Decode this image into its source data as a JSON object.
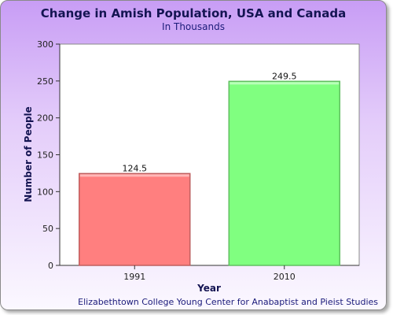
{
  "chart_data": {
    "type": "bar",
    "title": "Change in Amish Population, USA and Canada",
    "subtitle": "In Thousands",
    "xlabel": "Year",
    "ylabel": "Number of People",
    "categories": [
      "1991",
      "2010"
    ],
    "values": [
      124.5,
      249.5
    ],
    "data_labels": [
      "124.5",
      "249.5"
    ],
    "bar_colors": [
      "#ff7f7f",
      "#80ff80"
    ],
    "ylim": [
      0,
      300
    ],
    "yticks": [
      0,
      50,
      100,
      150,
      200,
      250,
      300
    ],
    "grid": false,
    "legend": "none",
    "source": "Elizabethtown College Young Center for Anabaptist and Pieist Studies"
  }
}
